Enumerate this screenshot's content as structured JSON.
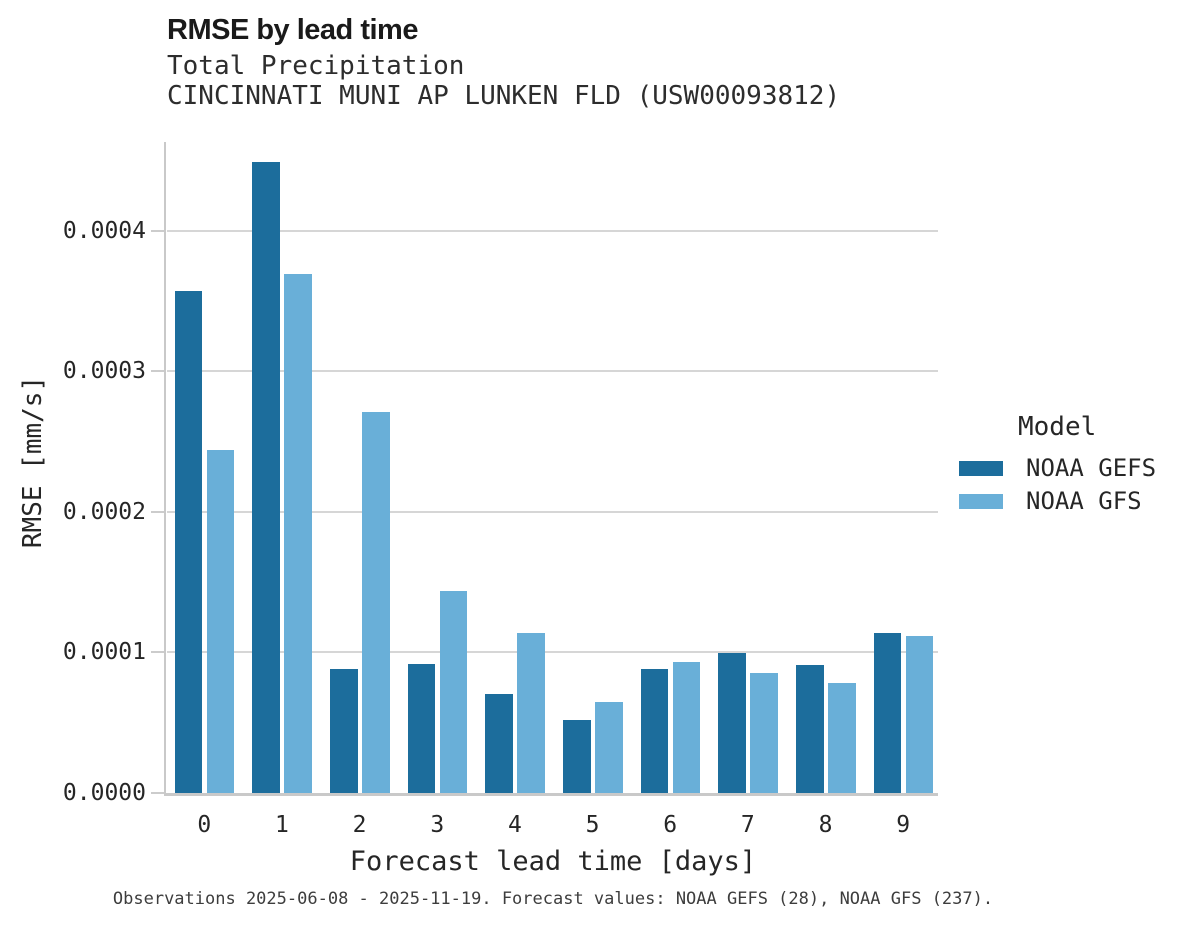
{
  "title": "RMSE by lead time",
  "subtitle_line1": "Total Precipitation",
  "subtitle_line2": "CINCINNATI MUNI AP LUNKEN FLD (USW00093812)",
  "x_axis": {
    "label": "Forecast lead time [days]",
    "ticks": [
      "0",
      "1",
      "2",
      "3",
      "4",
      "5",
      "6",
      "7",
      "8",
      "9"
    ]
  },
  "y_axis": {
    "label": "RMSE [mm/s]",
    "ticks": [
      "0.0000",
      "0.0001",
      "0.0002",
      "0.0003",
      "0.0004"
    ],
    "tick_values": [
      0,
      0.0001,
      0.0002,
      0.0003,
      0.0004
    ]
  },
  "legend": {
    "title": "Model",
    "entries": [
      {
        "label": "NOAA GEFS",
        "color": "#1c6d9c"
      },
      {
        "label": "NOAA GFS",
        "color": "#69afd8"
      }
    ]
  },
  "footnote": "Observations 2025-06-08 - 2025-11-19. Forecast values: NOAA GEFS (28), NOAA GFS (237).",
  "colors": {
    "gefs_dark_blue": "#1c6d9c",
    "gfs_light_blue": "#69afd8",
    "gridline_gray": "#d6d6d6",
    "axis_gray": "#c9c9c9",
    "text_dark": "#262626"
  },
  "chart_data": {
    "type": "bar",
    "title": "RMSE by lead time",
    "subtitle": [
      "Total Precipitation",
      "CINCINNATI MUNI AP LUNKEN FLD (USW00093812)"
    ],
    "categories": [
      0,
      1,
      2,
      3,
      4,
      5,
      6,
      7,
      8,
      9
    ],
    "series": [
      {
        "name": "NOAA GEFS",
        "color": "#1c6d9c",
        "values": [
          0.000357,
          0.000449,
          8.8e-05,
          9.2e-05,
          7.05e-05,
          5.2e-05,
          8.8e-05,
          9.95e-05,
          9.1e-05,
          0.000114
        ]
      },
      {
        "name": "NOAA GFS",
        "color": "#69afd8",
        "values": [
          0.000244,
          0.000369,
          0.000271,
          0.000144,
          0.000114,
          6.5e-05,
          9.35e-05,
          8.55e-05,
          7.8e-05,
          0.000112
        ]
      }
    ],
    "xlabel": "Forecast lead time [days]",
    "ylabel": "RMSE [mm/s]",
    "ylim": [
      0,
      0.000463
    ],
    "ytick_interval": 0.0001,
    "grid": "horizontal",
    "legend_title": "Model",
    "legend_position": "center-right",
    "footnote": "Observations 2025-06-08 - 2025-11-19. Forecast values: NOAA GEFS (28), NOAA GFS (237)."
  }
}
